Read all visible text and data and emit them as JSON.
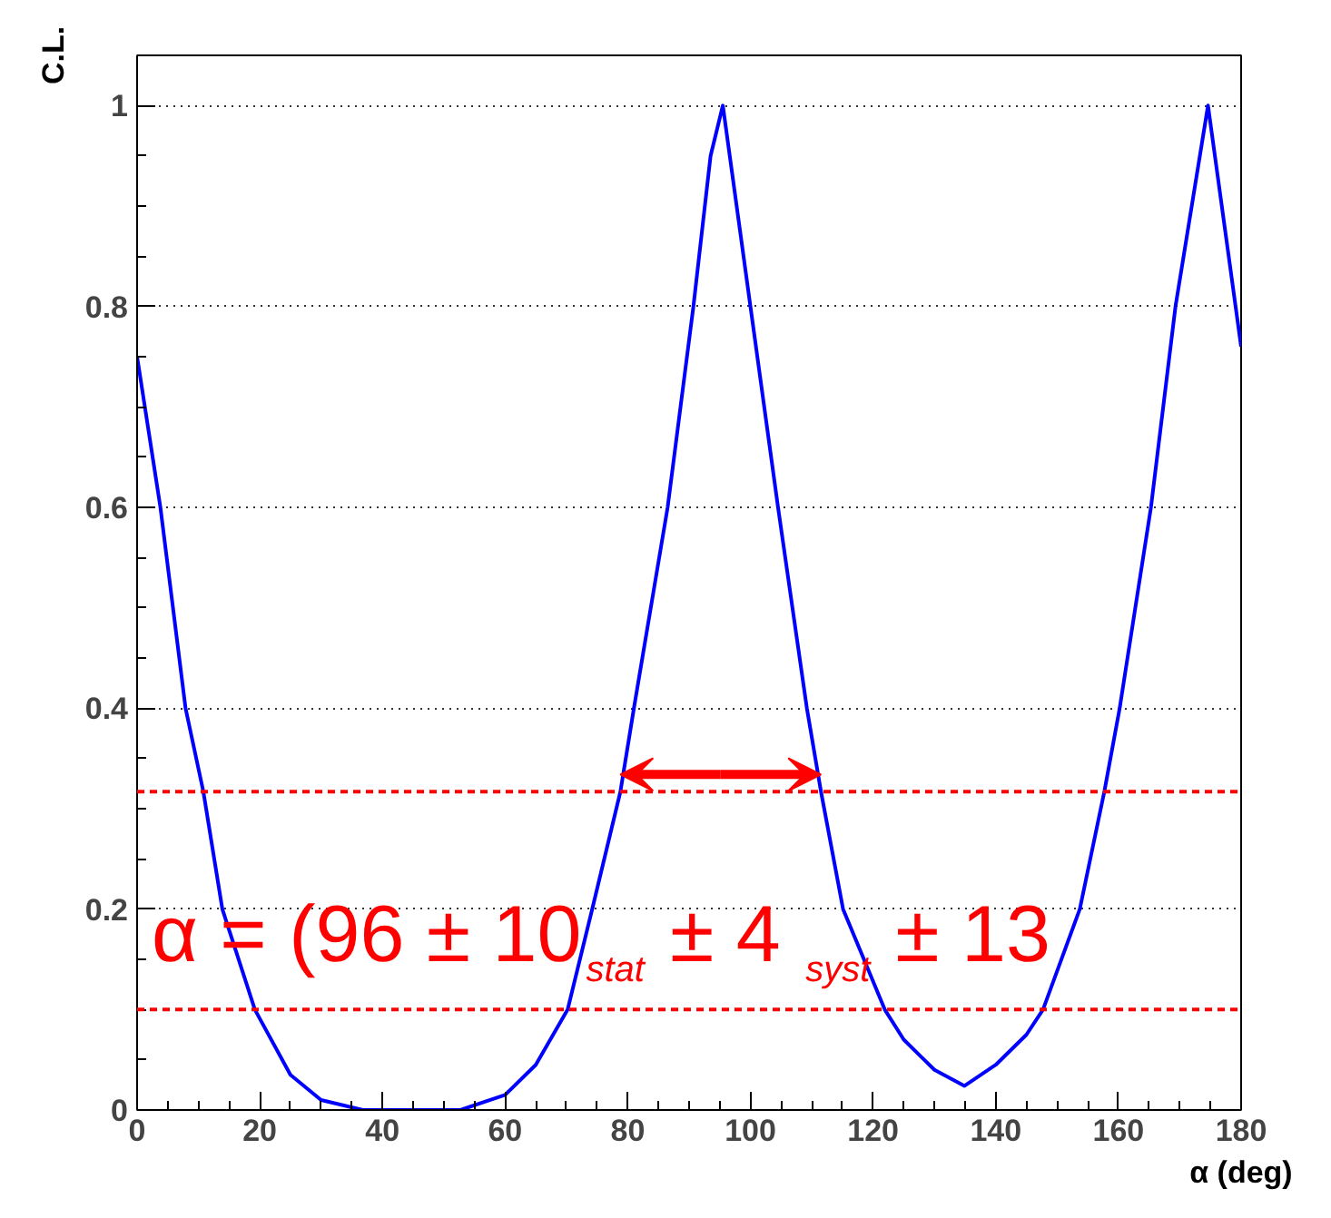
{
  "chart_data": {
    "type": "line",
    "xlabel": "α (deg)",
    "ylabel": "C.L.",
    "x": [
      0,
      3.8,
      7.9,
      10.8,
      13.9,
      19.2,
      25,
      30,
      36.8,
      52.7,
      60,
      65,
      70.2,
      74.2,
      78.8,
      81,
      86.5,
      90.7,
      93.5,
      95.5,
      100,
      104.5,
      109.2,
      111.5,
      115.1,
      121.9,
      125,
      130,
      134.9,
      140,
      145,
      147.7,
      153.7,
      157.7,
      160.2,
      165.3,
      169.3,
      174.6,
      180
    ],
    "series": [
      {
        "color": "#0000ff",
        "values": [
          0.75,
          0.6,
          0.4,
          0.317,
          0.2,
          0.1,
          0.035,
          0.01,
          0,
          0,
          0.015,
          0.045,
          0.1,
          0.2,
          0.317,
          0.4,
          0.6,
          0.8,
          0.95,
          1,
          0.8,
          0.6,
          0.4,
          0.317,
          0.2,
          0.1,
          0.07,
          0.04,
          0.024,
          0.045,
          0.075,
          0.1,
          0.2,
          0.317,
          0.4,
          0.6,
          0.8,
          1,
          0.76
        ]
      }
    ],
    "xlim": [
      0,
      180
    ],
    "xticks": [
      0,
      20,
      40,
      60,
      80,
      100,
      120,
      140,
      160,
      180
    ],
    "ylim": [
      0,
      1.05
    ],
    "yticks": [
      0,
      0.2,
      0.4,
      0.6,
      0.8,
      1
    ],
    "grid": "y",
    "marker": "none",
    "line_style": "solid",
    "ref_lines": [
      {
        "axis": "y",
        "value": 0.317,
        "color": "#ff0000",
        "line_style": "dashed"
      },
      {
        "axis": "y",
        "value": 0.1,
        "color": "#ff0000",
        "line_style": "dashed"
      }
    ],
    "annotations": [
      "α = (96 ± 10$_{stat}$ ± 4$_{syst}$ ± 13"
    ]
  }
}
